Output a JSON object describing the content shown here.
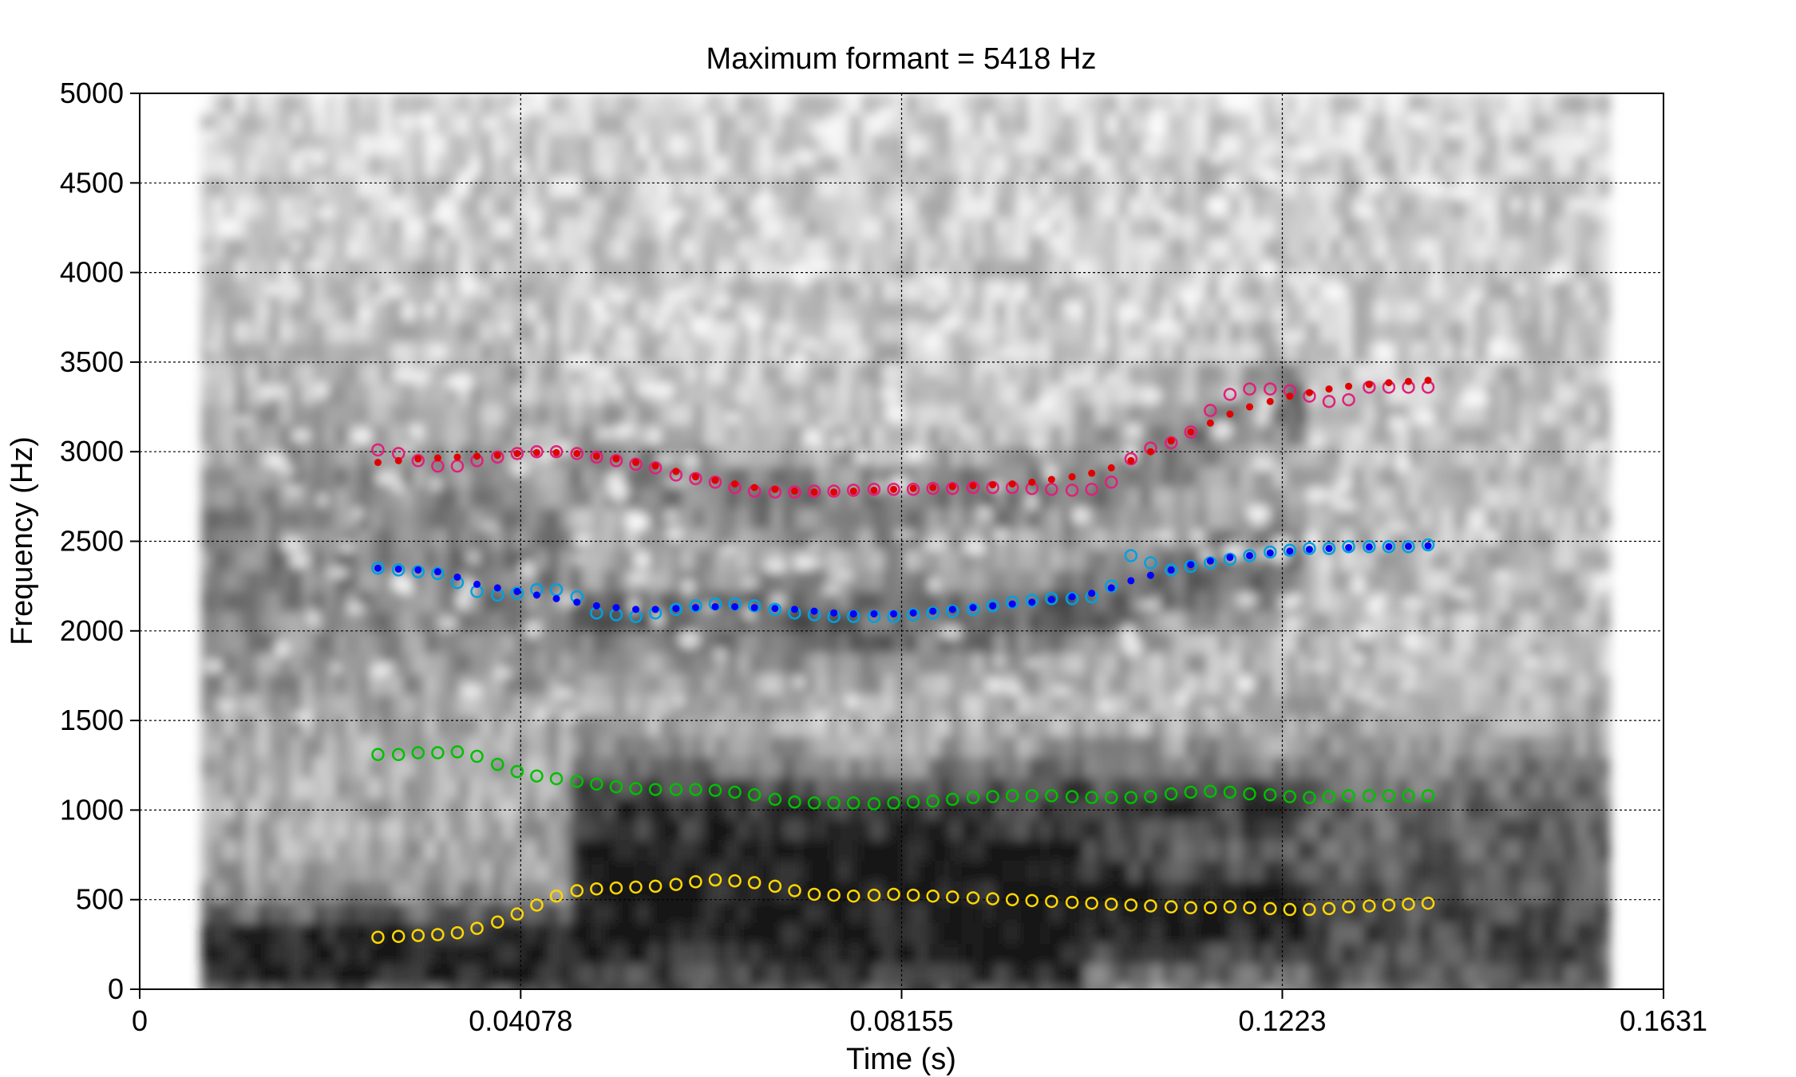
{
  "chart_data": {
    "type": "scatter",
    "title": "Maximum formant = 5418 Hz",
    "xlabel": "Time (s)",
    "ylabel": "Frequency (Hz)",
    "xlim": [
      0,
      0.1631
    ],
    "ylim": [
      0,
      5000
    ],
    "x_ticks": [
      "0",
      "0.04078",
      "0.08155",
      "0.1223",
      "0.1631"
    ],
    "y_ticks": [
      "0",
      "500",
      "1000",
      "1500",
      "2000",
      "2500",
      "3000",
      "3500",
      "4000",
      "4500",
      "5000"
    ],
    "grid": true,
    "background": "grayscale spectrogram",
    "spectrogram_time_range": [
      0.0066,
      0.1566
    ],
    "series": [
      {
        "color": "#ffd700",
        "marker": "open-circle",
        "x": [
          0.0255,
          0.0277,
          0.0298,
          0.0319,
          0.034,
          0.0361,
          0.0383,
          0.0404,
          0.0425,
          0.0446,
          0.0468,
          0.0489,
          0.051,
          0.0531,
          0.0552,
          0.0574,
          0.0595,
          0.0616,
          0.0637,
          0.0658,
          0.068,
          0.0701,
          0.0722,
          0.0743,
          0.0764,
          0.0786,
          0.0807,
          0.0828,
          0.0849,
          0.087,
          0.0892,
          0.0913,
          0.0934,
          0.0955,
          0.0976,
          0.0998,
          0.1019,
          0.104,
          0.1061,
          0.1082,
          0.1104,
          0.1125,
          0.1146,
          0.1167,
          0.1188,
          0.121,
          0.1231,
          0.1252,
          0.1273,
          0.1294,
          0.1316,
          0.1337,
          0.1358,
          0.1379
        ],
        "y": [
          290,
          295,
          300,
          305,
          315,
          340,
          375,
          420,
          470,
          520,
          550,
          560,
          565,
          570,
          575,
          585,
          600,
          610,
          605,
          595,
          575,
          550,
          530,
          525,
          520,
          525,
          530,
          525,
          520,
          515,
          510,
          505,
          500,
          495,
          490,
          485,
          480,
          475,
          470,
          465,
          460,
          455,
          455,
          460,
          455,
          450,
          445,
          445,
          450,
          460,
          465,
          470,
          475,
          480
        ]
      },
      {
        "color": "#00c000",
        "marker": "open-circle",
        "x": [
          0.0255,
          0.0277,
          0.0298,
          0.0319,
          0.034,
          0.0361,
          0.0383,
          0.0404,
          0.0425,
          0.0446,
          0.0468,
          0.0489,
          0.051,
          0.0531,
          0.0552,
          0.0574,
          0.0595,
          0.0616,
          0.0637,
          0.0658,
          0.068,
          0.0701,
          0.0722,
          0.0743,
          0.0764,
          0.0786,
          0.0807,
          0.0828,
          0.0849,
          0.087,
          0.0892,
          0.0913,
          0.0934,
          0.0955,
          0.0976,
          0.0998,
          0.1019,
          0.104,
          0.1061,
          0.1082,
          0.1104,
          0.1125,
          0.1146,
          0.1167,
          0.1188,
          0.121,
          0.1231,
          0.1252,
          0.1273,
          0.1294,
          0.1316,
          0.1337,
          0.1358,
          0.1379
        ],
        "y": [
          1310,
          1310,
          1320,
          1320,
          1325,
          1300,
          1255,
          1215,
          1190,
          1175,
          1160,
          1145,
          1130,
          1120,
          1115,
          1115,
          1115,
          1110,
          1100,
          1085,
          1060,
          1045,
          1040,
          1040,
          1040,
          1035,
          1040,
          1045,
          1050,
          1060,
          1070,
          1075,
          1080,
          1080,
          1080,
          1075,
          1070,
          1070,
          1070,
          1075,
          1090,
          1100,
          1105,
          1100,
          1090,
          1085,
          1075,
          1070,
          1075,
          1080,
          1080,
          1080,
          1080,
          1080
        ]
      },
      {
        "color": "#00a0e0",
        "marker": "open-circle",
        "x": [
          0.0255,
          0.0277,
          0.0298,
          0.0319,
          0.034,
          0.0361,
          0.0383,
          0.0404,
          0.0425,
          0.0446,
          0.0468,
          0.0489,
          0.051,
          0.0531,
          0.0552,
          0.0574,
          0.0595,
          0.0616,
          0.0637,
          0.0658,
          0.068,
          0.0701,
          0.0722,
          0.0743,
          0.0764,
          0.0786,
          0.0807,
          0.0828,
          0.0849,
          0.087,
          0.0892,
          0.0913,
          0.0934,
          0.0955,
          0.0976,
          0.0998,
          0.1019,
          0.104,
          0.1061,
          0.1082,
          0.1104,
          0.1125,
          0.1146,
          0.1167,
          0.1188,
          0.121,
          0.1231,
          0.1252,
          0.1273,
          0.1294,
          0.1316,
          0.1337,
          0.1358,
          0.1379
        ],
        "y": [
          2350,
          2340,
          2330,
          2320,
          2270,
          2220,
          2200,
          2210,
          2230,
          2230,
          2190,
          2100,
          2090,
          2080,
          2100,
          2120,
          2140,
          2150,
          2150,
          2140,
          2120,
          2100,
          2090,
          2080,
          2080,
          2080,
          2080,
          2090,
          2100,
          2110,
          2120,
          2140,
          2160,
          2170,
          2180,
          2180,
          2190,
          2250,
          2420,
          2380,
          2340,
          2360,
          2380,
          2400,
          2420,
          2440,
          2450,
          2460,
          2460,
          2470,
          2470,
          2470,
          2470,
          2480
        ]
      },
      {
        "color": "#0000ff",
        "marker": "filled-dot",
        "x": [
          0.0255,
          0.0277,
          0.0298,
          0.0319,
          0.034,
          0.0361,
          0.0383,
          0.0404,
          0.0425,
          0.0446,
          0.0468,
          0.0489,
          0.051,
          0.0531,
          0.0552,
          0.0574,
          0.0595,
          0.0616,
          0.0637,
          0.0658,
          0.068,
          0.0701,
          0.0722,
          0.0743,
          0.0764,
          0.0786,
          0.0807,
          0.0828,
          0.0849,
          0.087,
          0.0892,
          0.0913,
          0.0934,
          0.0955,
          0.0976,
          0.0998,
          0.1019,
          0.104,
          0.1061,
          0.1082,
          0.1104,
          0.1125,
          0.1146,
          0.1167,
          0.1188,
          0.121,
          0.1231,
          0.1252,
          0.1273,
          0.1294,
          0.1316,
          0.1337,
          0.1358,
          0.1379
        ],
        "y": [
          2350,
          2345,
          2340,
          2330,
          2300,
          2260,
          2240,
          2220,
          2200,
          2180,
          2160,
          2140,
          2130,
          2120,
          2120,
          2125,
          2130,
          2135,
          2135,
          2130,
          2125,
          2120,
          2110,
          2100,
          2095,
          2095,
          2095,
          2100,
          2110,
          2120,
          2130,
          2140,
          2150,
          2160,
          2175,
          2190,
          2210,
          2240,
          2280,
          2310,
          2340,
          2370,
          2390,
          2410,
          2420,
          2435,
          2445,
          2455,
          2460,
          2465,
          2468,
          2470,
          2472,
          2475
        ]
      },
      {
        "color": "#e0207a",
        "marker": "open-circle",
        "x": [
          0.0255,
          0.0277,
          0.0298,
          0.0319,
          0.034,
          0.0361,
          0.0383,
          0.0404,
          0.0425,
          0.0446,
          0.0468,
          0.0489,
          0.051,
          0.0531,
          0.0552,
          0.0574,
          0.0595,
          0.0616,
          0.0637,
          0.0658,
          0.068,
          0.0701,
          0.0722,
          0.0743,
          0.0764,
          0.0786,
          0.0807,
          0.0828,
          0.0849,
          0.087,
          0.0892,
          0.0913,
          0.0934,
          0.0955,
          0.0976,
          0.0998,
          0.1019,
          0.104,
          0.1061,
          0.1082,
          0.1104,
          0.1125,
          0.1146,
          0.1167,
          0.1188,
          0.121,
          0.1231,
          0.1252,
          0.1273,
          0.1294,
          0.1316,
          0.1337,
          0.1358,
          0.1379
        ],
        "y": [
          3010,
          2990,
          2950,
          2920,
          2920,
          2950,
          2970,
          2990,
          3000,
          3000,
          2990,
          2970,
          2950,
          2930,
          2910,
          2870,
          2850,
          2830,
          2800,
          2780,
          2775,
          2775,
          2780,
          2780,
          2785,
          2790,
          2790,
          2790,
          2795,
          2795,
          2800,
          2800,
          2800,
          2795,
          2790,
          2785,
          2790,
          2830,
          2960,
          3020,
          3050,
          3110,
          3230,
          3320,
          3350,
          3350,
          3340,
          3310,
          3280,
          3290,
          3360,
          3360,
          3360,
          3360
        ]
      },
      {
        "color": "#e00000",
        "marker": "filled-dot",
        "x": [
          0.0255,
          0.0277,
          0.0298,
          0.0319,
          0.034,
          0.0361,
          0.0383,
          0.0404,
          0.0425,
          0.0446,
          0.0468,
          0.0489,
          0.051,
          0.0531,
          0.0552,
          0.0574,
          0.0595,
          0.0616,
          0.0637,
          0.0658,
          0.068,
          0.0701,
          0.0722,
          0.0743,
          0.0764,
          0.0786,
          0.0807,
          0.0828,
          0.0849,
          0.087,
          0.0892,
          0.0913,
          0.0934,
          0.0955,
          0.0976,
          0.0998,
          0.1019,
          0.104,
          0.1061,
          0.1082,
          0.1104,
          0.1125,
          0.1146,
          0.1167,
          0.1188,
          0.121,
          0.1231,
          0.1252,
          0.1273,
          0.1294,
          0.1316,
          0.1337,
          0.1358,
          0.1379
        ],
        "y": [
          2940,
          2950,
          2960,
          2965,
          2970,
          2975,
          2980,
          2990,
          2995,
          2995,
          2990,
          2975,
          2960,
          2940,
          2920,
          2890,
          2860,
          2840,
          2820,
          2800,
          2790,
          2780,
          2775,
          2775,
          2780,
          2785,
          2790,
          2795,
          2800,
          2805,
          2810,
          2815,
          2820,
          2830,
          2845,
          2860,
          2880,
          2910,
          2950,
          3000,
          3060,
          3110,
          3160,
          3210,
          3250,
          3280,
          3310,
          3330,
          3350,
          3365,
          3375,
          3385,
          3392,
          3398
        ]
      }
    ]
  }
}
